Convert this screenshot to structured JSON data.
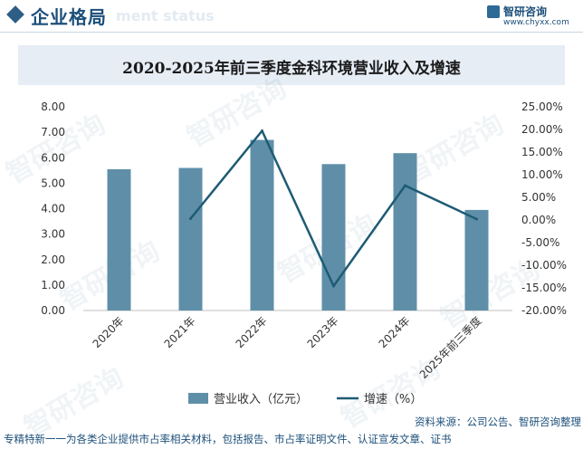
{
  "header": {
    "title": "企业格局",
    "ghost_text": "ment status",
    "brand_name": "智研咨询",
    "brand_url": "www.chyxx.com"
  },
  "watermark_text": "智研咨询",
  "chart_data": {
    "type": "bar",
    "title": "2020-2025年前三季度金科环境营业收入及增速",
    "categories": [
      "2020年",
      "2021年",
      "2022年",
      "2023年",
      "2024年",
      "2025年前三季度"
    ],
    "series": [
      {
        "name": "营业收入（亿元）",
        "type": "bar",
        "axis": "left",
        "color": "#5f8fa8",
        "values": [
          5.55,
          5.6,
          6.7,
          5.75,
          6.18,
          3.95
        ]
      },
      {
        "name": "增速（%）",
        "type": "line",
        "axis": "right",
        "color": "#1e5b74",
        "values": [
          null,
          0.3,
          19.7,
          -14.6,
          7.6,
          0.2
        ]
      }
    ],
    "y_left": {
      "min": 0,
      "max": 8,
      "step": 1,
      "ticks": [
        "0.00",
        "1.00",
        "2.00",
        "3.00",
        "4.00",
        "5.00",
        "6.00",
        "7.00",
        "8.00"
      ]
    },
    "y_right": {
      "min": -20,
      "max": 25,
      "step": 5,
      "ticks": [
        "-20.00%",
        "-15.00%",
        "-10.00%",
        "-5.00%",
        "0.00%",
        "5.00%",
        "10.00%",
        "15.00%",
        "20.00%",
        "25.00%"
      ]
    },
    "grid": false,
    "legend_position": "bottom"
  },
  "source": "资料来源：公司公告、智研咨询整理",
  "footer": "专精特新一一为各类企业提供市占率相关材料，包括报告、市占率证明文件、认证宣发文章、证书"
}
